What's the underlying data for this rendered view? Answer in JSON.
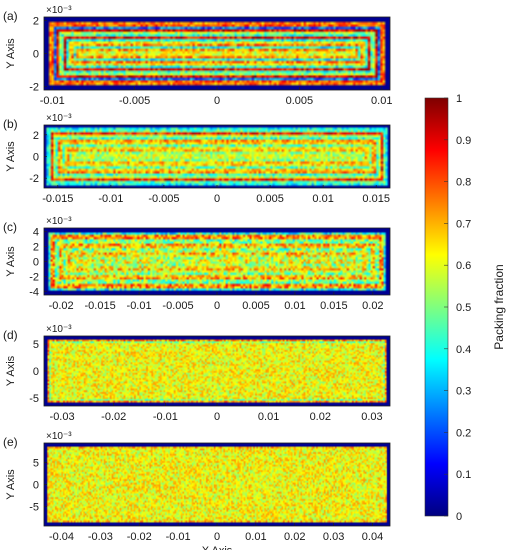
{
  "figure": {
    "colorbar_label": "Packing fraction",
    "colorbar_ticks": [
      "0",
      "0.1",
      "0.2",
      "0.3",
      "0.4",
      "0.5",
      "0.6",
      "0.7",
      "0.8",
      "0.9",
      "1"
    ],
    "colormap": [
      "#00007f",
      "#0000ff",
      "#007fff",
      "#00ffff",
      "#7fff7f",
      "#ffff00",
      "#ff7f00",
      "#ff0000",
      "#7f0000"
    ],
    "xlabel": "X Axis",
    "ylabel": "Y Axis",
    "exponent_label": "×10⁻³"
  },
  "chart_data": [
    {
      "type": "heatmap",
      "panel": "(a)",
      "ylabel": "Y Axis",
      "y_exponent": "×10⁻³",
      "xlim": [
        -0.0105,
        0.0105
      ],
      "ylim": [
        -0.0022,
        0.0022
      ],
      "xticks": [
        -0.01,
        -0.005,
        0,
        0.005,
        0.01
      ],
      "xtick_labels": [
        "-0.01",
        "-0.005",
        "0",
        "0.005",
        "0.01"
      ],
      "yticks": [
        -2,
        0,
        2
      ],
      "ytick_labels": [
        "-2",
        "0",
        "2"
      ],
      "wall_layers": 3,
      "value_range": [
        0,
        1
      ]
    },
    {
      "type": "heatmap",
      "panel": "(b)",
      "ylabel": "Y Axis",
      "y_exponent": "×10⁻³",
      "xlim": [
        -0.0163,
        0.0163
      ],
      "ylim": [
        -0.0029,
        0.0029
      ],
      "xticks": [
        -0.015,
        -0.01,
        -0.005,
        0,
        0.005,
        0.01,
        0.015
      ],
      "xtick_labels": [
        "-0.015",
        "-0.01",
        "-0.005",
        "0",
        "0.005",
        "0.01",
        "0.015"
      ],
      "yticks": [
        -2,
        0,
        2
      ],
      "ytick_labels": [
        "-2",
        "0",
        "2"
      ],
      "wall_layers": 2,
      "value_range": [
        0,
        1
      ]
    },
    {
      "type": "heatmap",
      "panel": "(c)",
      "ylabel": "Y Axis",
      "y_exponent": "×10⁻³",
      "xlim": [
        -0.0222,
        0.0222
      ],
      "ylim": [
        -0.0045,
        0.0045
      ],
      "xticks": [
        -0.02,
        -0.015,
        -0.01,
        -0.005,
        0,
        0.005,
        0.01,
        0.015,
        0.02
      ],
      "xtick_labels": [
        "-0.02",
        "-0.015",
        "-0.01",
        "-0.005",
        "0",
        "0.005",
        "0.01",
        "0.015",
        "0.02"
      ],
      "yticks": [
        -4,
        -2,
        0,
        2,
        4
      ],
      "ytick_labels": [
        "-4",
        "-2",
        "0",
        "2",
        "4"
      ],
      "wall_layers": 2,
      "value_range": [
        0,
        1
      ]
    },
    {
      "type": "heatmap",
      "panel": "(d)",
      "ylabel": "Y Axis",
      "y_exponent": "×10⁻³",
      "xlim": [
        -0.0335,
        0.0335
      ],
      "ylim": [
        -0.0065,
        0.0065
      ],
      "xticks": [
        -0.03,
        -0.02,
        -0.01,
        0,
        0.01,
        0.02,
        0.03
      ],
      "xtick_labels": [
        "-0.03",
        "-0.02",
        "-0.01",
        "0",
        "0.01",
        "0.02",
        "0.03"
      ],
      "yticks": [
        -5,
        0,
        5
      ],
      "ytick_labels": [
        "-5",
        "0",
        "5"
      ],
      "wall_layers": 1,
      "value_range": [
        0,
        1
      ]
    },
    {
      "type": "heatmap",
      "panel": "(e)",
      "ylabel": "Y Axis",
      "xlabel": "X Axis",
      "y_exponent": "×10⁻³",
      "xlim": [
        -0.0445,
        0.0445
      ],
      "ylim": [
        -0.0095,
        0.0095
      ],
      "xticks": [
        -0.04,
        -0.03,
        -0.02,
        -0.01,
        0,
        0.01,
        0.02,
        0.03,
        0.04
      ],
      "xtick_labels": [
        "-0.04",
        "-0.03",
        "-0.02",
        "-0.01",
        "0",
        "0.01",
        "0.02",
        "0.03",
        "0.04"
      ],
      "yticks": [
        -5,
        0,
        5
      ],
      "ytick_labels": [
        "-5",
        "0",
        "5"
      ],
      "wall_layers": 1,
      "value_range": [
        0,
        1
      ]
    }
  ]
}
